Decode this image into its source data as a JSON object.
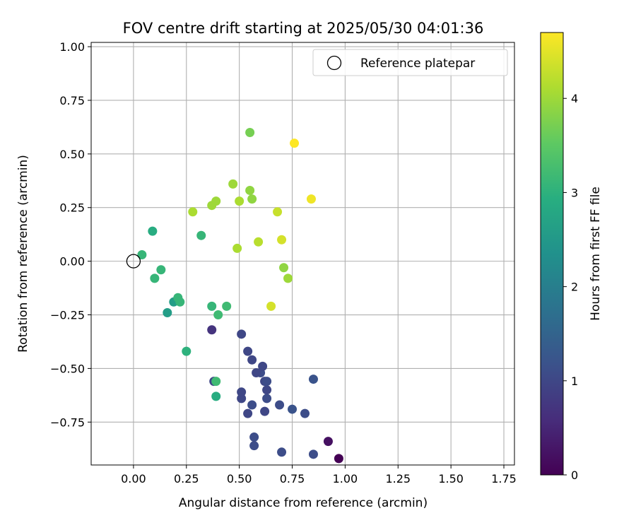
{
  "chart_data": {
    "type": "scatter",
    "title": "FOV centre drift starting at 2025/05/30 04:01:36",
    "xlabel": "Angular distance from reference (arcmin)",
    "ylabel": "Rotation from reference (arcmin)",
    "xlim": [
      -0.2,
      1.8
    ],
    "ylim": [
      -0.95,
      1.02
    ],
    "x_ticks": [
      0.0,
      0.25,
      0.5,
      0.75,
      1.0,
      1.25,
      1.5,
      1.75
    ],
    "x_tick_labels": [
      "0.00",
      "0.25",
      "0.50",
      "0.75",
      "1.00",
      "1.25",
      "1.50",
      "1.75"
    ],
    "y_ticks": [
      -0.75,
      -0.5,
      -0.25,
      0.0,
      0.25,
      0.5,
      0.75,
      1.0
    ],
    "y_tick_labels": [
      "−0.75",
      "−0.50",
      "−0.25",
      "0.00",
      "0.25",
      "0.50",
      "0.75",
      "1.00"
    ],
    "grid": true,
    "legend": {
      "placement": "top-right",
      "entries": [
        "Reference platepar"
      ]
    },
    "reference_point": {
      "x": 0.0,
      "y": 0.0,
      "marker": "open-circle"
    },
    "colorbar": {
      "label": "Hours from first FF file",
      "colormap": "viridis",
      "range": [
        0,
        4.7
      ],
      "ticks": [
        0,
        1,
        2,
        3,
        4
      ],
      "tick_labels": [
        "0",
        "1",
        "2",
        "3",
        "4"
      ]
    },
    "points": [
      {
        "x": 0.97,
        "y": -0.92,
        "h": 0.0
      },
      {
        "x": 0.92,
        "y": -0.84,
        "h": 0.2
      },
      {
        "x": 0.85,
        "y": -0.9,
        "h": 1.1
      },
      {
        "x": 0.7,
        "y": -0.89,
        "h": 1.1
      },
      {
        "x": 0.57,
        "y": -0.86,
        "h": 1.1
      },
      {
        "x": 0.57,
        "y": -0.82,
        "h": 1.1
      },
      {
        "x": 0.81,
        "y": -0.71,
        "h": 1.1
      },
      {
        "x": 0.75,
        "y": -0.69,
        "h": 1.2
      },
      {
        "x": 0.69,
        "y": -0.67,
        "h": 1.1
      },
      {
        "x": 0.62,
        "y": -0.7,
        "h": 1.0
      },
      {
        "x": 0.54,
        "y": -0.71,
        "h": 1.0
      },
      {
        "x": 0.56,
        "y": -0.67,
        "h": 1.1
      },
      {
        "x": 0.51,
        "y": -0.64,
        "h": 1.0
      },
      {
        "x": 0.51,
        "y": -0.61,
        "h": 1.0
      },
      {
        "x": 0.63,
        "y": -0.64,
        "h": 1.1
      },
      {
        "x": 0.63,
        "y": -0.6,
        "h": 1.0
      },
      {
        "x": 0.62,
        "y": -0.56,
        "h": 1.0
      },
      {
        "x": 0.63,
        "y": -0.56,
        "h": 1.1
      },
      {
        "x": 0.6,
        "y": -0.52,
        "h": 1.1
      },
      {
        "x": 0.58,
        "y": -0.52,
        "h": 1.0
      },
      {
        "x": 0.61,
        "y": -0.49,
        "h": 1.0
      },
      {
        "x": 0.56,
        "y": -0.46,
        "h": 1.0
      },
      {
        "x": 0.54,
        "y": -0.42,
        "h": 1.0
      },
      {
        "x": 0.51,
        "y": -0.34,
        "h": 1.0
      },
      {
        "x": 0.85,
        "y": -0.55,
        "h": 1.2
      },
      {
        "x": 0.37,
        "y": -0.32,
        "h": 0.7
      },
      {
        "x": 0.38,
        "y": -0.56,
        "h": 1.0
      },
      {
        "x": 0.39,
        "y": -0.56,
        "h": 3.2
      },
      {
        "x": 0.39,
        "y": -0.63,
        "h": 2.9
      },
      {
        "x": 0.25,
        "y": -0.42,
        "h": 3.0
      },
      {
        "x": 0.16,
        "y": -0.24,
        "h": 2.6
      },
      {
        "x": 0.19,
        "y": -0.19,
        "h": 2.6
      },
      {
        "x": 0.21,
        "y": -0.17,
        "h": 3.1
      },
      {
        "x": 0.22,
        "y": -0.19,
        "h": 3.1
      },
      {
        "x": 0.37,
        "y": -0.21,
        "h": 3.1
      },
      {
        "x": 0.4,
        "y": -0.25,
        "h": 3.2
      },
      {
        "x": 0.44,
        "y": -0.21,
        "h": 3.2
      },
      {
        "x": 0.1,
        "y": -0.08,
        "h": 3.1
      },
      {
        "x": 0.13,
        "y": -0.04,
        "h": 3.1
      },
      {
        "x": 0.04,
        "y": 0.03,
        "h": 3.1
      },
      {
        "x": 0.09,
        "y": 0.14,
        "h": 2.9
      },
      {
        "x": 0.32,
        "y": 0.12,
        "h": 3.1
      },
      {
        "x": 0.28,
        "y": 0.23,
        "h": 4.1
      },
      {
        "x": 0.37,
        "y": 0.26,
        "h": 4.0
      },
      {
        "x": 0.39,
        "y": 0.28,
        "h": 4.0
      },
      {
        "x": 0.47,
        "y": 0.36,
        "h": 4.0
      },
      {
        "x": 0.5,
        "y": 0.28,
        "h": 4.1
      },
      {
        "x": 0.55,
        "y": 0.33,
        "h": 3.9
      },
      {
        "x": 0.56,
        "y": 0.29,
        "h": 3.9
      },
      {
        "x": 0.55,
        "y": 0.6,
        "h": 3.7
      },
      {
        "x": 0.49,
        "y": 0.06,
        "h": 4.1
      },
      {
        "x": 0.59,
        "y": 0.09,
        "h": 4.2
      },
      {
        "x": 0.68,
        "y": 0.23,
        "h": 4.3
      },
      {
        "x": 0.7,
        "y": 0.1,
        "h": 4.4
      },
      {
        "x": 0.71,
        "y": -0.03,
        "h": 3.9
      },
      {
        "x": 0.73,
        "y": -0.08,
        "h": 4.0
      },
      {
        "x": 0.65,
        "y": -0.21,
        "h": 4.4
      },
      {
        "x": 0.76,
        "y": 0.55,
        "h": 4.7
      },
      {
        "x": 0.84,
        "y": 0.29,
        "h": 4.6
      }
    ]
  }
}
